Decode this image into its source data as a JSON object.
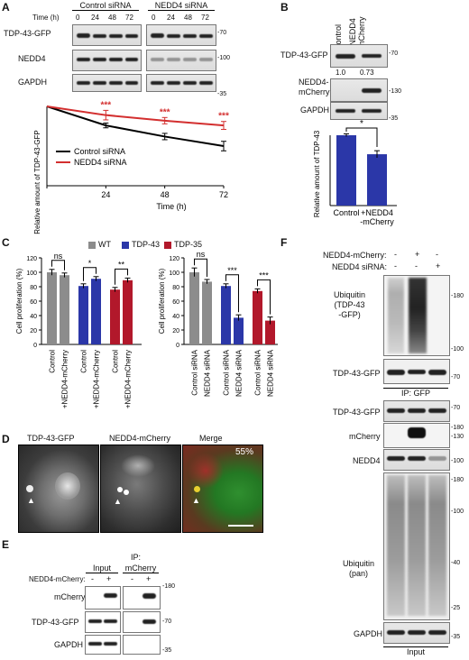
{
  "panels": {
    "A": "A",
    "B": "B",
    "C": "C",
    "D": "D",
    "E": "E",
    "F": "F"
  },
  "panelA": {
    "header_ctrl": "Control siRNA",
    "header_nedd": "NEDD4 siRNA",
    "time_label": "Time (h)",
    "times": [
      "0",
      "24",
      "48",
      "72"
    ],
    "rows": [
      "TDP-43-GFP",
      "NEDD4",
      "GAPDH"
    ],
    "mw": [
      "-70",
      "-100",
      "-35"
    ]
  },
  "panelB": {
    "lane1": "Control",
    "lane2": "+NEDD4\n-mCherry",
    "rows": [
      "TDP-43-GFP",
      "NEDD4-\nmCherry",
      "GAPDH"
    ],
    "mw": [
      "-70",
      "-130",
      "-35"
    ],
    "quant": [
      "1.0",
      "0.73"
    ],
    "sig": "*",
    "ylabel": "Relative amount of TDP-43",
    "xcats": [
      "Control",
      "+NEDD4\n-mCherry"
    ]
  },
  "panelC": {
    "legend": [
      "WT",
      "TDP-43",
      "TDP-35"
    ],
    "ylabel": "Cell proliferation (%)",
    "left_x": [
      "Control",
      "+NEDD4-mCherry",
      "Control",
      "+NEDD4-mCherry",
      "Control",
      "+NEDD4-mCherry"
    ],
    "right_x": [
      "Control siRNA",
      "NEDD4 siRNA",
      "Control siRNA",
      "NEDD4 siRNA",
      "Control siRNA",
      "NEDD4 siRNA"
    ],
    "left_sig": [
      "ns",
      "*",
      "**"
    ],
    "right_sig": [
      "ns",
      "***",
      "***"
    ],
    "yticks": [
      "0",
      "20",
      "40",
      "60",
      "80",
      "100",
      "120"
    ]
  },
  "panelD": {
    "titles": [
      "TDP-43-GFP",
      "NEDD4-mCherry",
      "Merge"
    ],
    "percent": "55%"
  },
  "panelE": {
    "ip": "IP:",
    "input": "Input",
    "ip_mcherry": "mCherry",
    "row_label": "NEDD4-mCherry:",
    "signs": [
      "-",
      "+",
      "-",
      "+"
    ],
    "rows": [
      "mCherry",
      "TDP-43-GFP",
      "GAPDH"
    ],
    "mw": [
      "-180",
      "-70",
      "-35"
    ]
  },
  "panelF": {
    "cond1": "NEDD4-mCherry:",
    "cond2": "NEDD4 siRNA:",
    "signs1": [
      "-",
      "+",
      "-"
    ],
    "signs2": [
      "-",
      "-",
      "+"
    ],
    "ub_label": "Ubiquitin\n(TDP-43\n-GFP)",
    "tdp": "TDP-43-GFP",
    "ip_gfp": "IP: GFP",
    "tdp2": "TDP-43-GFP",
    "mcherry": "mCherry",
    "nedd4": "NEDD4",
    "ub_pan": "Ubiquitin\n(pan)",
    "gapdh": "GAPDH",
    "input": "Input",
    "mw_top": [
      "-180",
      "-100"
    ],
    "mw_70": "-70",
    "mw_list": [
      "-70",
      "-180",
      "-130",
      "-100",
      "-180",
      "-100",
      "-40",
      "-25",
      "-35"
    ]
  },
  "chart_data": [
    {
      "type": "line",
      "title": "",
      "xlabel": "Time (h)",
      "ylabel": "Relative amount of TDP-43-GFP",
      "x": [
        0,
        24,
        48,
        72
      ],
      "ylim": [
        0,
        1.0
      ],
      "series": [
        {
          "name": "Control siRNA",
          "values": [
            1.0,
            0.76,
            0.62,
            0.5
          ],
          "err": [
            0,
            0.03,
            0.04,
            0.06
          ],
          "color": "#000000"
        },
        {
          "name": "NEDD4 siRNA",
          "values": [
            1.0,
            0.89,
            0.82,
            0.76
          ],
          "err": [
            0,
            0.06,
            0.04,
            0.05
          ],
          "color": "#d32f2f"
        }
      ],
      "annotations": [
        "***",
        "***",
        "***"
      ]
    },
    {
      "type": "bar",
      "title": "",
      "ylabel": "Relative amount of TDP-43",
      "categories": [
        "Control",
        "+NEDD4\n-mCherry"
      ],
      "values": [
        1.0,
        0.73
      ],
      "err": [
        0.02,
        0.05
      ],
      "ylim": [
        0,
        1.0
      ],
      "color": "#2b37a8"
    },
    {
      "type": "bar",
      "ylabel": "Cell proliferation (%)",
      "ylim": [
        0,
        120
      ],
      "categories": [
        "Control",
        "+NEDD4-mCherry",
        "Control",
        "+NEDD4-mCherry",
        "Control",
        "+NEDD4-mCherry"
      ],
      "values": [
        100,
        96,
        81,
        91,
        76,
        89
      ],
      "err": [
        4,
        3,
        3,
        3,
        3,
        3
      ],
      "colors": [
        "#8c8c8c",
        "#8c8c8c",
        "#2b37a8",
        "#2b37a8",
        "#b2182b",
        "#b2182b"
      ]
    },
    {
      "type": "bar",
      "ylabel": "Cell proliferation (%)",
      "ylim": [
        0,
        120
      ],
      "categories": [
        "Control siRNA",
        "NEDD4 siRNA",
        "Control siRNA",
        "NEDD4 siRNA",
        "Control siRNA",
        "NEDD4 siRNA"
      ],
      "values": [
        100,
        87,
        81,
        37,
        74,
        33
      ],
      "err": [
        6,
        3,
        3,
        4,
        3,
        5
      ],
      "colors": [
        "#8c8c8c",
        "#8c8c8c",
        "#2b37a8",
        "#2b37a8",
        "#b2182b",
        "#b2182b"
      ]
    }
  ]
}
